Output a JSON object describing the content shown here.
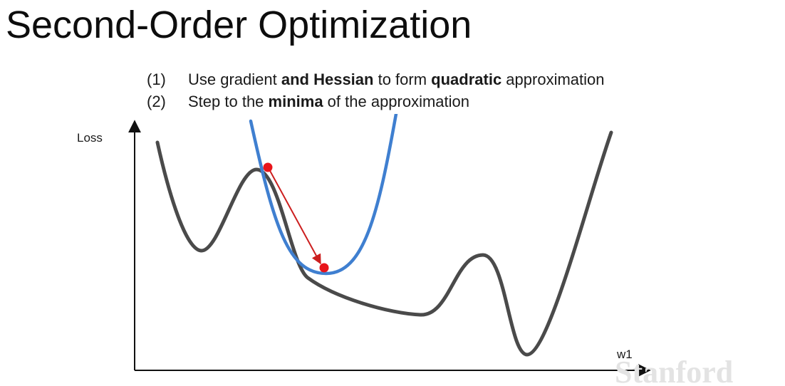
{
  "slide": {
    "title": "Second-Order Optimization",
    "bullets": [
      {
        "number": "(1)",
        "parts": [
          {
            "text": "Use gradient ",
            "bold": false
          },
          {
            "text": "and Hessian",
            "bold": true
          },
          {
            "text": " to form ",
            "bold": false
          },
          {
            "text": "quadratic",
            "bold": true
          },
          {
            "text": " approximation",
            "bold": false
          }
        ]
      },
      {
        "number": "(2)",
        "parts": [
          {
            "text": "Step to the ",
            "bold": false
          },
          {
            "text": "minima",
            "bold": true
          },
          {
            "text": " of the approximation",
            "bold": false
          }
        ]
      }
    ]
  },
  "diagram": {
    "y_axis_label": "Loss",
    "x_axis_label": "w1",
    "colors": {
      "loss_curve": "#4a4a4a",
      "quadratic_approx": "#3f7fd0",
      "step_arrow": "#cc1f1f",
      "points": "#e8141a",
      "axes": "#111111"
    }
  },
  "watermark": {
    "text": "Stanford"
  }
}
